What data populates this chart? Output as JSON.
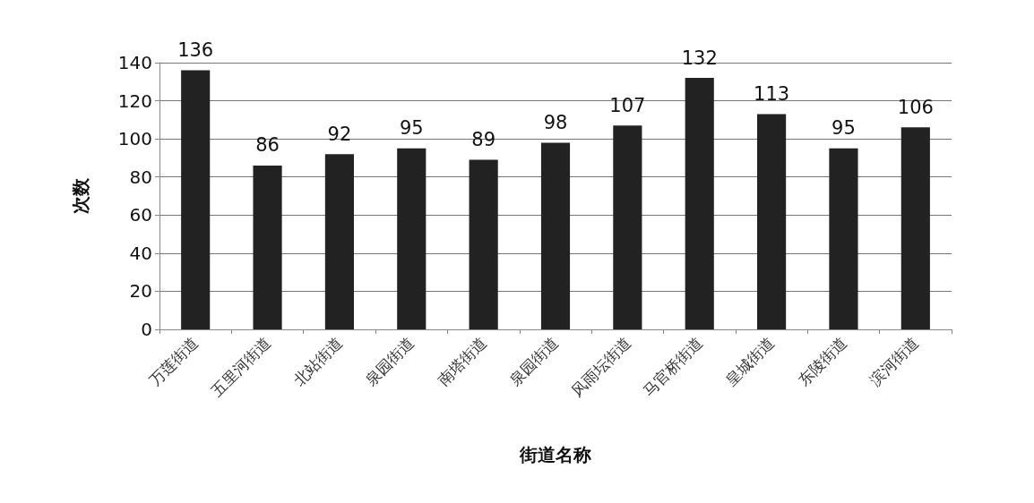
{
  "chart_data": {
    "type": "bar",
    "xlabel": "街道名称",
    "ylabel": "次数",
    "categories": [
      "万莲街道",
      "五里河街道",
      "北站街道",
      "泉园街道",
      "南塔街道",
      "泉园街道",
      "风雨坛街道",
      "马官桥街道",
      "皇城街道",
      "东陵街道",
      "滨河街道"
    ],
    "values": [
      136,
      86,
      92,
      95,
      89,
      98,
      107,
      132,
      113,
      95,
      106
    ],
    "color": "#222222",
    "ylim": [
      0,
      140
    ],
    "yticks": [
      0,
      20,
      40,
      60,
      80,
      100,
      120,
      140
    ],
    "grid": "y",
    "data_labels": true
  }
}
